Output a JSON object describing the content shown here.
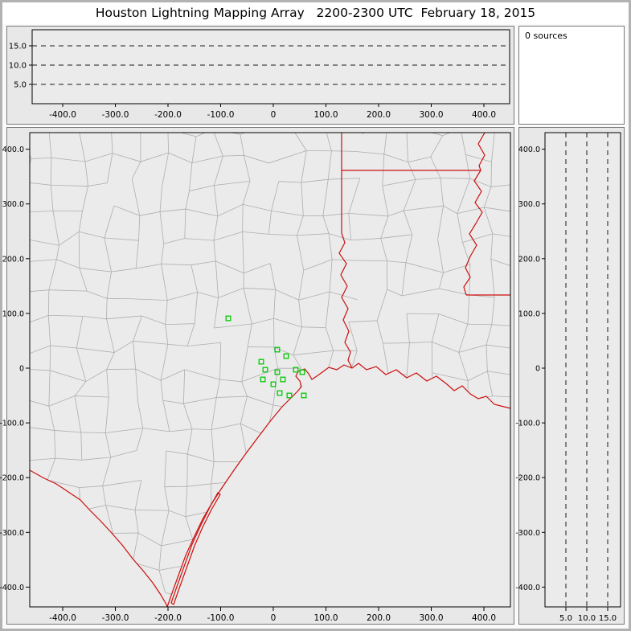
{
  "title": "Houston Lightning Mapping Array   2200-2300 UTC  February 18, 2015",
  "sources_panel": {
    "label": "0 sources"
  },
  "colors": {
    "chrome": "#b2b2b2",
    "panel_bg": "#e8e8e8",
    "plot_bg": "#ebebeb",
    "axis": "#000000",
    "gridline": "#1a1a1a",
    "county_line": "#aeaeae",
    "state_border": "#cc0f0f",
    "station_marker": "#00c800"
  },
  "chart_data": [
    {
      "type": "scatter",
      "name": "altitude-vs-east-west",
      "title": "",
      "points": [],
      "source_count": 0,
      "x_ticks_km": [
        -400,
        -300,
        -200,
        -100,
        0,
        100,
        200,
        300,
        400
      ],
      "x_tick_labels": [
        "-400.0",
        "-300.0",
        "-200.0",
        "-100.0",
        "0",
        "100.0",
        "200.0",
        "300.0",
        "400.0"
      ],
      "gridlines_alt_km": [
        5,
        10,
        15
      ],
      "gridline_labels": [
        "5.0",
        "10.0",
        "15.0"
      ],
      "x_range_km": [
        -458,
        449
      ],
      "alt_range_km": [
        0,
        19.2
      ],
      "grid_style": "dashed-horizontal"
    },
    {
      "type": "scatter",
      "name": "plan-view-map",
      "title": "",
      "points": [],
      "source_count": 0,
      "stations_km": [
        [
          -85.5,
          91.0
        ],
        [
          7.6,
          33.8
        ],
        [
          24.4,
          22.0
        ],
        [
          -22.9,
          11.7
        ],
        [
          -15.3,
          -2.9
        ],
        [
          7.6,
          -7.3
        ],
        [
          -19.8,
          -20.6
        ],
        [
          0.0,
          -29.4
        ],
        [
          18.3,
          -20.6
        ],
        [
          42.7,
          -2.9
        ],
        [
          55.0,
          -7.3
        ],
        [
          12.2,
          -45.5
        ],
        [
          30.5,
          -49.9
        ],
        [
          58.0,
          -49.9
        ]
      ],
      "x_ticks_km": [
        -400,
        -300,
        -200,
        -100,
        0,
        100,
        200,
        300,
        400
      ],
      "x_tick_labels": [
        "-400.0",
        "-300.0",
        "-200.0",
        "-100.0",
        "0",
        "100.0",
        "200.0",
        "300.0",
        "400.0"
      ],
      "y_ticks_km": [
        400,
        300,
        200,
        100,
        0,
        -100,
        -200,
        -300,
        -400
      ],
      "y_tick_labels": [
        "400.0",
        "300.0",
        "200.0",
        "100.0",
        "0",
        "-100.0",
        "-200.0",
        "-300.0",
        "-400.0"
      ],
      "x_range_km": [
        -462,
        451
      ],
      "y_range_km": [
        -437,
        430
      ]
    },
    {
      "type": "scatter",
      "name": "altitude-vs-north-south",
      "title": "",
      "points": [],
      "source_count": 0,
      "alt_ticks_km": [
        5,
        10,
        15
      ],
      "alt_tick_labels": [
        "5.0",
        "10.0",
        "15.0"
      ],
      "y_ticks_km": [
        400,
        300,
        200,
        100,
        0,
        -100,
        -200,
        -300,
        -400
      ],
      "y_tick_labels": [
        "400.0",
        "300.0",
        "200.0",
        "100.0",
        "0",
        "-100.0",
        "-200.0",
        "-300.0",
        "-400.0"
      ],
      "alt_range_km": [
        0,
        18.1
      ],
      "grid_style": "dashed-vertical"
    }
  ],
  "map_geometry": {
    "coastline": [
      [
        171,
        590
      ],
      [
        178,
        570
      ],
      [
        186,
        548
      ],
      [
        194,
        526
      ],
      [
        204,
        504
      ],
      [
        215,
        481
      ],
      [
        226,
        462
      ],
      [
        239,
        442
      ],
      [
        254,
        420
      ],
      [
        269,
        399
      ],
      [
        284,
        379
      ],
      [
        300,
        358
      ],
      [
        314,
        341
      ],
      [
        325,
        330
      ],
      [
        333,
        322
      ],
      [
        338,
        316
      ],
      [
        336,
        309
      ],
      [
        331,
        303
      ],
      [
        334,
        297
      ],
      [
        342,
        294
      ],
      [
        347,
        300
      ],
      [
        351,
        307
      ],
      [
        357,
        303
      ],
      [
        364,
        298
      ],
      [
        372,
        292
      ],
      [
        382,
        295
      ],
      [
        391,
        289
      ],
      [
        401,
        293
      ],
      [
        409,
        287
      ],
      [
        419,
        295
      ],
      [
        431,
        291
      ],
      [
        443,
        301
      ],
      [
        456,
        295
      ],
      [
        469,
        305
      ],
      [
        481,
        299
      ],
      [
        494,
        309
      ],
      [
        506,
        303
      ],
      [
        519,
        313
      ],
      [
        528,
        321
      ],
      [
        538,
        315
      ],
      [
        548,
        325
      ],
      [
        558,
        331
      ],
      [
        568,
        328
      ],
      [
        578,
        338
      ],
      [
        590,
        341
      ],
      [
        598,
        343
      ]
    ],
    "rio_grande": [
      [
        0,
        420
      ],
      [
        18,
        430
      ],
      [
        33,
        437
      ],
      [
        48,
        447
      ],
      [
        63,
        457
      ],
      [
        75,
        470
      ],
      [
        88,
        483
      ],
      [
        101,
        497
      ],
      [
        115,
        513
      ],
      [
        128,
        530
      ],
      [
        141,
        545
      ],
      [
        153,
        560
      ],
      [
        163,
        575
      ],
      [
        170,
        587
      ],
      [
        171,
        590
      ]
    ],
    "barrier_island": [
      [
        176,
        585
      ],
      [
        184,
        562
      ],
      [
        193,
        537
      ],
      [
        202,
        512
      ],
      [
        213,
        488
      ],
      [
        224,
        466
      ],
      [
        234,
        448
      ],
      [
        237,
        450
      ],
      [
        226,
        469
      ],
      [
        215,
        491
      ],
      [
        205,
        514
      ],
      [
        196,
        539
      ],
      [
        187,
        564
      ],
      [
        179,
        587
      ]
    ],
    "texas_east_border": [
      [
        388,
        0
      ],
      [
        388,
        125
      ],
      [
        392,
        137
      ],
      [
        385,
        150
      ],
      [
        394,
        163
      ],
      [
        387,
        177
      ],
      [
        395,
        191
      ],
      [
        388,
        205
      ],
      [
        396,
        219
      ],
      [
        390,
        233
      ],
      [
        397,
        247
      ],
      [
        392,
        261
      ],
      [
        399,
        273
      ],
      [
        396,
        283
      ],
      [
        401,
        293
      ]
    ],
    "arkansas_louisiana_border": [
      [
        388,
        47
      ],
      [
        561,
        47
      ]
    ],
    "mississippi_river": [
      [
        566,
        0
      ],
      [
        558,
        14
      ],
      [
        566,
        28
      ],
      [
        559,
        41
      ],
      [
        561,
        47
      ],
      [
        553,
        60
      ],
      [
        562,
        73
      ],
      [
        554,
        87
      ],
      [
        563,
        99
      ],
      [
        555,
        113
      ],
      [
        547,
        126
      ],
      [
        556,
        140
      ],
      [
        548,
        154
      ],
      [
        542,
        168
      ],
      [
        548,
        180
      ],
      [
        540,
        192
      ],
      [
        543,
        202
      ]
    ],
    "louisiana_mississippi_border": [
      [
        543,
        202
      ],
      [
        598,
        202
      ]
    ]
  }
}
